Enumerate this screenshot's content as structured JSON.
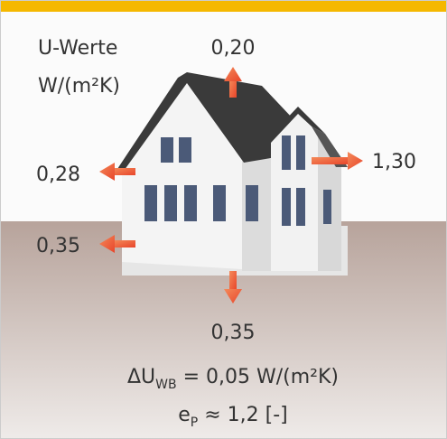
{
  "legend": {
    "lines": [
      "U-Werte",
      "W/(m²K)"
    ]
  },
  "u_values": {
    "roof": "0,20",
    "window": "1,30",
    "wall": "0,28",
    "basement_wall": "0,35",
    "floor": "0,35"
  },
  "formulas": {
    "thermal_bridge": {
      "symbol": "ΔU",
      "subscript": "WB",
      "rest": " = 0,05 W/(m²K)"
    },
    "primary_energy": {
      "symbol": "e",
      "subscript": "P",
      "rest": " ≈ 1,2 [-]"
    }
  }
}
